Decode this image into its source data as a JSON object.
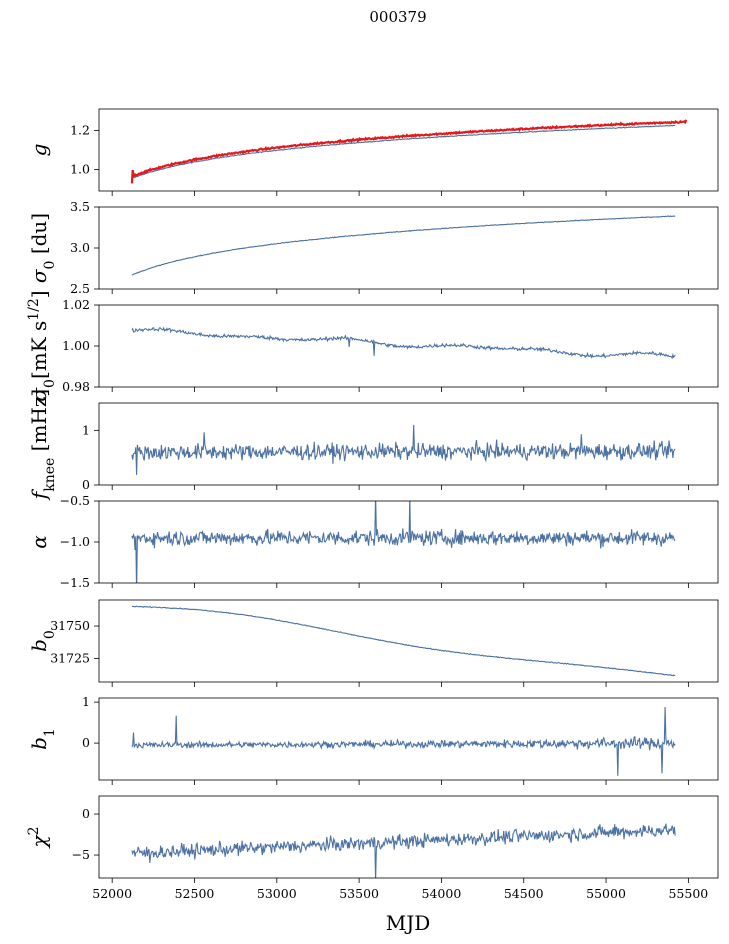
{
  "chart_data": {
    "type": "line",
    "title": "000379",
    "xlabel": "MJD",
    "xlim": [
      51920,
      55680
    ],
    "x_ticks": [
      "52000",
      "52500",
      "53000",
      "53500",
      "54000",
      "54500",
      "55000",
      "55500"
    ],
    "x_tick_values": [
      52000,
      52500,
      53000,
      53500,
      54000,
      54500,
      55000,
      55500
    ],
    "x_range": [
      52120,
      55420
    ],
    "colors": {
      "series": "#4c72a4",
      "overlay": "#e31a1c"
    },
    "panels": [
      {
        "id": "g",
        "ylabel_main": "g",
        "ylabel_sub": "",
        "ylabel_sup": "",
        "ylabel_tail": "",
        "ylim": [
          0.89,
          1.31
        ],
        "tick_values": [
          1.0,
          1.2
        ],
        "tick_labels": [
          "1.0",
          "1.2"
        ],
        "series": [
          {
            "color": "#4c72a4",
            "kind": "log",
            "start": 0.955,
            "end": 1.225,
            "noise": 0.002,
            "spikes": []
          },
          {
            "color": "#e31a1c",
            "kind": "log",
            "start": 0.965,
            "end": 1.245,
            "noise": 0.004,
            "width": 2.2,
            "x_end": 55490,
            "spikes": [
              [
                52120,
                -0.035
              ],
              [
                52125,
                0.03
              ]
            ]
          }
        ]
      },
      {
        "id": "sigma0-du",
        "ylabel_main": "σ",
        "ylabel_sub": "0",
        "ylabel_sup": "",
        "ylabel_tail": " [du]",
        "ylim": [
          2.5,
          3.5
        ],
        "tick_values": [
          2.5,
          3.0,
          3.5
        ],
        "tick_labels": [
          "2.5",
          "3.0",
          "3.5"
        ],
        "series": [
          {
            "color": "#4c72a4",
            "kind": "log",
            "start": 2.67,
            "end": 3.39,
            "noise": 0.004,
            "spikes": []
          }
        ]
      },
      {
        "id": "sigma0-mk",
        "ylabel_main": "σ",
        "ylabel_sub": "0",
        "ylabel_sup": "1/2",
        "ylabel_tail": "[mK s",
        "ylabel_close": "]",
        "ylim": [
          0.98,
          1.02
        ],
        "tick_values": [
          0.98,
          1.0,
          1.02
        ],
        "tick_labels": [
          "0.98",
          "1.00",
          "1.02"
        ],
        "series": [
          {
            "color": "#4c72a4",
            "kind": "wavy",
            "start": 1.0075,
            "end": 0.9945,
            "noise": 0.0008,
            "wave": 0.0015,
            "spikes": [
              [
                53590,
                -0.007
              ],
              [
                53440,
                -0.004
              ]
            ]
          }
        ]
      },
      {
        "id": "fknee",
        "ylabel_main": "f",
        "ylabel_sub": "knee",
        "ylabel_sup": "",
        "ylabel_tail": " [mHz]",
        "ylim": [
          0,
          1.5
        ],
        "tick_values": [
          0,
          1
        ],
        "tick_labels": [
          "0",
          "1"
        ],
        "series": [
          {
            "color": "#4c72a4",
            "kind": "noisy",
            "start": 0.6,
            "end": 0.62,
            "noise": 0.14,
            "spikes": [
              [
                52150,
                -0.35
              ],
              [
                53830,
                0.42
              ],
              [
                52560,
                0.35
              ],
              [
                54850,
                0.3
              ]
            ]
          }
        ]
      },
      {
        "id": "alpha",
        "ylabel_main": "α",
        "ylabel_sub": "",
        "ylabel_sup": "",
        "ylabel_tail": "",
        "ylim": [
          -1.5,
          -0.5
        ],
        "tick_values": [
          -1.5,
          -1.0,
          -0.5
        ],
        "tick_labels": [
          "−1.5",
          "−1.0",
          "−0.5"
        ],
        "series": [
          {
            "color": "#4c72a4",
            "kind": "noisy",
            "start": -0.95,
            "end": -0.95,
            "noise": 0.09,
            "spikes": [
              [
                52150,
                -0.6
              ],
              [
                53600,
                0.55
              ],
              [
                53810,
                0.5
              ],
              [
                52140,
                -0.2
              ]
            ]
          }
        ]
      },
      {
        "id": "b0",
        "ylabel_main": "b",
        "ylabel_sub": "0",
        "ylabel_sup": "",
        "ylabel_tail": "",
        "ylim": [
          31707,
          31770
        ],
        "tick_values": [
          31725,
          31750
        ],
        "tick_labels": [
          "31725",
          "31750"
        ],
        "series": [
          {
            "color": "#4c72a4",
            "kind": "b0",
            "start": 31765,
            "end": 31711,
            "noise": 0.3,
            "spikes": []
          }
        ]
      },
      {
        "id": "b1",
        "ylabel_main": "b",
        "ylabel_sub": "1",
        "ylabel_sup": "",
        "ylabel_tail": "",
        "ylim": [
          -0.9,
          1.1
        ],
        "tick_values": [
          0,
          1
        ],
        "tick_labels": [
          "0",
          "1"
        ],
        "series": [
          {
            "color": "#4c72a4",
            "kind": "noisy",
            "start": -0.05,
            "end": 0.0,
            "noise": 0.07,
            "grow": 2.2,
            "spikes": [
              [
                52390,
                0.8
              ],
              [
                55070,
                -0.75
              ],
              [
                55360,
                1.0
              ],
              [
                55340,
                -0.7
              ],
              [
                52130,
                0.35
              ]
            ]
          }
        ]
      },
      {
        "id": "chi2",
        "ylabel_main": "χ",
        "ylabel_sub": "",
        "ylabel_sup": "2",
        "ylabel_tail": "",
        "ylim": [
          -7.8,
          2.2
        ],
        "tick_values": [
          -5,
          0
        ],
        "tick_labels": [
          "−5",
          "0"
        ],
        "series": [
          {
            "color": "#4c72a4",
            "kind": "noisy",
            "start": -4.8,
            "end": -1.9,
            "noise": 0.8,
            "spikes": [
              [
                53600,
                -4.2
              ],
              [
                52230,
                -1.5
              ],
              [
                55050,
                1.2
              ]
            ]
          }
        ]
      }
    ]
  }
}
